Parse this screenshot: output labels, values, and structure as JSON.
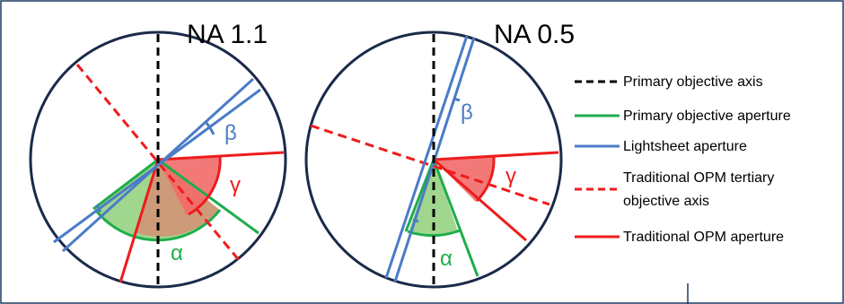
{
  "diagram": {
    "left": {
      "title": "NA 1.1",
      "alpha_label": "α",
      "beta_label": "β",
      "gamma_label": "γ"
    },
    "right": {
      "title": "NA 0.5",
      "alpha_label": "α",
      "beta_label": "β",
      "gamma_label": "γ"
    }
  },
  "legend": {
    "items": [
      {
        "label": "Primary objective axis",
        "style": "black-dashed"
      },
      {
        "label": "Primary objective aperture",
        "style": "green-solid"
      },
      {
        "label": "Lightsheet aperture",
        "style": "blue-solid"
      },
      {
        "label_line1": "Traditional OPM tertiary",
        "label_line2": "objective axis",
        "style": "red-dashed"
      },
      {
        "label": "Traditional OPM aperture",
        "style": "red-solid"
      }
    ]
  },
  "colors": {
    "circle": "#1b2a4a",
    "axis": "#000000",
    "green": "#1fad4b",
    "green_fill": "#8fcf7a",
    "blue": "#4a7cc7",
    "red": "#ee1c1c",
    "red_fill": "#f26a6a",
    "frame": "#1f3864"
  }
}
